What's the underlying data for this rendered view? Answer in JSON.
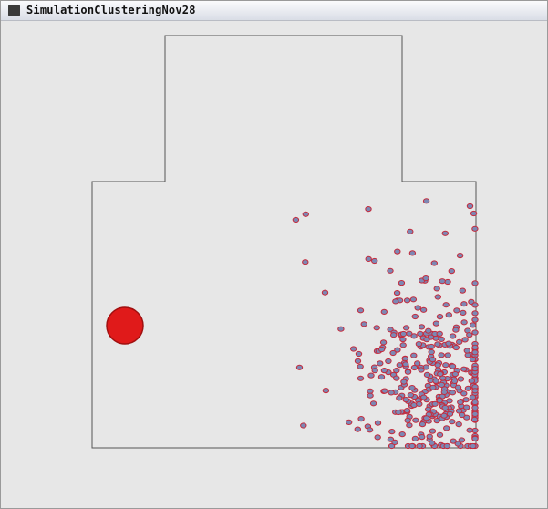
{
  "window": {
    "title": "SimulationClusteringNov28"
  }
}
